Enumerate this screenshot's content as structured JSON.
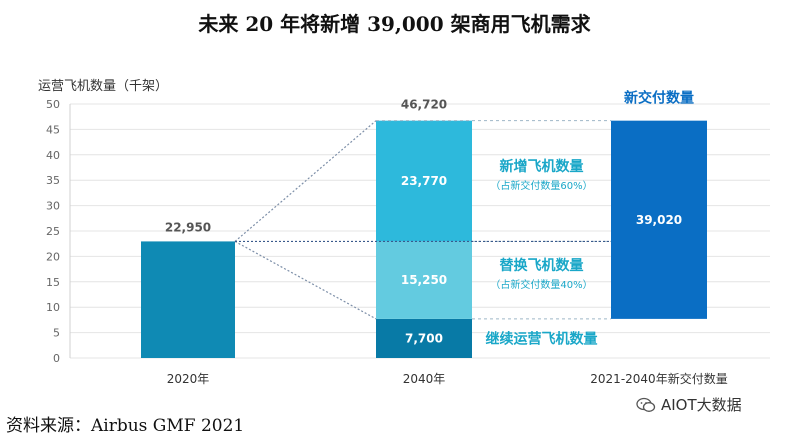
{
  "chart_data": {
    "type": "bar",
    "title": "未来 20 年将新增 39,000 架商用飞机需求",
    "ylabel": "运营飞机数量（千架）",
    "ylim": [
      0,
      50
    ],
    "yticks": [
      0,
      5,
      10,
      15,
      20,
      25,
      30,
      35,
      40,
      45,
      50
    ],
    "categories": [
      "2020年",
      "2040年",
      "2021-2040年新交付数量"
    ],
    "bar_2020": {
      "value": 22.95,
      "label": "22,950"
    },
    "bar_2040": {
      "total_label": "46,720",
      "segments": [
        {
          "name": "继续运营飞机数量",
          "value": 7.7,
          "label": "7,700",
          "color": "#087aa6"
        },
        {
          "name": "替换飞机数量",
          "note": "（占新交付数量40%）",
          "value": 15.25,
          "label": "15,250",
          "color": "#63cbe0"
        },
        {
          "name": "新增飞机数量",
          "note": "（占新交付数量60%）",
          "value": 23.77,
          "label": "23,770",
          "color": "#2db9dc"
        }
      ]
    },
    "bar_new_deliveries": {
      "name": "新交付数量",
      "value": 39.02,
      "base": 7.7,
      "label": "39,020",
      "color": "#0a6ec4"
    },
    "colors": {
      "bar_2020": "#0f8ab4",
      "axis_text": "#666666",
      "label_text": "#555555",
      "teal_text": "#1aa7c8",
      "blue_text": "#0a6ec4"
    }
  },
  "source": "资料来源：Airbus GMF 2021",
  "watermark": "AIOT大数据"
}
